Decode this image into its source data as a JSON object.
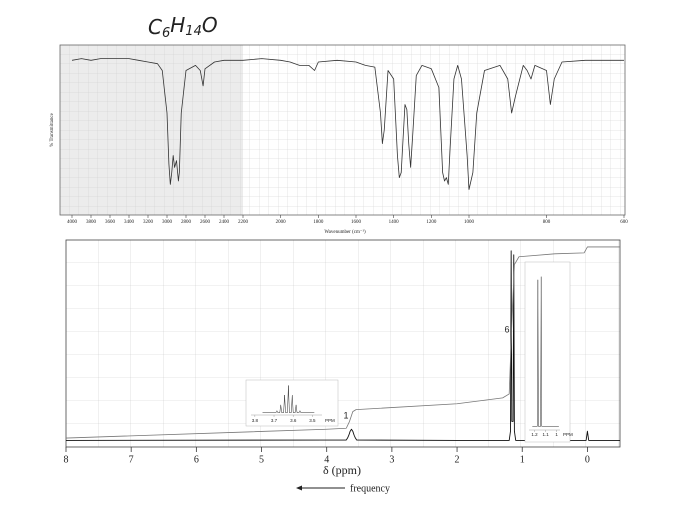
{
  "formula": [
    "C",
    "6",
    "H",
    "14",
    "O"
  ],
  "chart_data": [
    {
      "type": "line",
      "ylabel": "% Transmittance",
      "xlabel": "Wavenumber (cm⁻¹)",
      "xlim": [
        4000,
        600
      ],
      "xbreaks": [
        2200,
        1000
      ],
      "ylim": [
        0,
        100
      ],
      "xticks": [
        4000,
        3800,
        3600,
        3400,
        3200,
        3000,
        2800,
        2600,
        2400,
        2200,
        2000,
        1800,
        1600,
        1400,
        1200,
        1000,
        800,
        600
      ],
      "color": "#333333",
      "x": [
        4000,
        3900,
        3800,
        3700,
        3600,
        3500,
        3400,
        3300,
        3200,
        3100,
        3050,
        3000,
        2980,
        2965,
        2950,
        2935,
        2920,
        2900,
        2880,
        2870,
        2850,
        2800,
        2700,
        2650,
        2620,
        2600,
        2500,
        2400,
        2300,
        2200,
        2100,
        2000,
        1950,
        1900,
        1850,
        1820,
        1800,
        1700,
        1600,
        1550,
        1500,
        1470,
        1460,
        1450,
        1430,
        1400,
        1380,
        1370,
        1360,
        1340,
        1330,
        1320,
        1310,
        1300,
        1280,
        1250,
        1200,
        1160,
        1140,
        1130,
        1120,
        1110,
        1100,
        1080,
        1060,
        1040,
        1010,
        1000,
        990,
        980,
        960,
        920,
        900,
        890,
        880,
        860,
        850,
        840,
        830,
        800,
        790,
        780,
        760,
        700,
        600
      ],
      "values": [
        91,
        92,
        91,
        92,
        92,
        92,
        92,
        91,
        90,
        89,
        85,
        60,
        30,
        18,
        25,
        35,
        28,
        32,
        20,
        25,
        60,
        85,
        88,
        85,
        76,
        86,
        90,
        91,
        91,
        91,
        92,
        91,
        90,
        88,
        88,
        85,
        90,
        91,
        90,
        88,
        87,
        60,
        42,
        50,
        85,
        80,
        35,
        22,
        25,
        65,
        62,
        42,
        28,
        45,
        82,
        88,
        86,
        75,
        25,
        20,
        22,
        18,
        40,
        80,
        88,
        80,
        35,
        15,
        25,
        60,
        85,
        88,
        80,
        60,
        70,
        88,
        85,
        80,
        88,
        85,
        65,
        80,
        90,
        91,
        91
      ]
    },
    {
      "type": "nmr",
      "xlabel": "δ (ppm)",
      "direction_label": "frequency",
      "xlim": [
        8,
        -0.5
      ],
      "ylim": [
        0,
        100
      ],
      "xticks": [
        8,
        7,
        6,
        5,
        4,
        3,
        2,
        1,
        0
      ],
      "annotations": [
        "1",
        "6"
      ],
      "series": [
        {
          "color": "#111111",
          "x": [
            8,
            4,
            3.7,
            3.68,
            3.66,
            3.64,
            3.62,
            3.6,
            3.58,
            3.56,
            3.54,
            2,
            1.2,
            1.18,
            1.17,
            1.16,
            1.14,
            1.13,
            1.12,
            1.1,
            0.02,
            0,
            -0.02,
            -0.5
          ],
          "values": [
            0.3,
            0.5,
            0.5,
            1.5,
            3,
            5,
            6,
            5,
            3,
            1.5,
            0.5,
            0.3,
            0.3,
            5,
            97,
            10,
            10,
            95,
            5,
            0.3,
            0.3,
            5,
            0.3,
            0.3
          ]
        },
        {
          "color": "#777777",
          "x": [
            8,
            4,
            3.7,
            3.65,
            3.6,
            3.55,
            2,
            1.3,
            1.2,
            1.16,
            1.12,
            1.05,
            0.5,
            0.05,
            0,
            -0.5
          ],
          "values": [
            1.5,
            6,
            6.5,
            10,
            15,
            16,
            19,
            22,
            24,
            60,
            90,
            94,
            95.5,
            96,
            99,
            99
          ]
        }
      ],
      "insets": [
        {
          "xlim": [
            3.82,
            3.45
          ],
          "xticks": [
            3.8,
            3.7,
            3.6,
            3.5
          ],
          "unit": "PPM",
          "ylim": [
            0,
            100
          ],
          "x": [
            3.76,
            3.69,
            3.685,
            3.68,
            3.67,
            3.665,
            3.66,
            3.65,
            3.645,
            3.64,
            3.63,
            3.625,
            3.62,
            3.61,
            3.605,
            3.6,
            3.59,
            3.585,
            3.58,
            3.57,
            3.565,
            3.56,
            3.49
          ],
          "values": [
            1,
            1,
            8,
            1,
            1,
            28,
            1,
            1,
            62,
            1,
            1,
            95,
            1,
            1,
            62,
            1,
            1,
            28,
            1,
            1,
            8,
            1,
            1
          ]
        },
        {
          "xlim": [
            1.25,
            0.97
          ],
          "xticks": [
            1.2,
            1.1,
            1.0
          ],
          "unit": "PPM",
          "ylim": [
            0,
            100
          ],
          "x": [
            1.22,
            1.175,
            1.17,
            1.165,
            1.145,
            1.14,
            1.135,
            0.98
          ],
          "values": [
            1,
            1,
            95,
            1,
            1,
            97,
            1,
            1
          ]
        }
      ]
    }
  ]
}
